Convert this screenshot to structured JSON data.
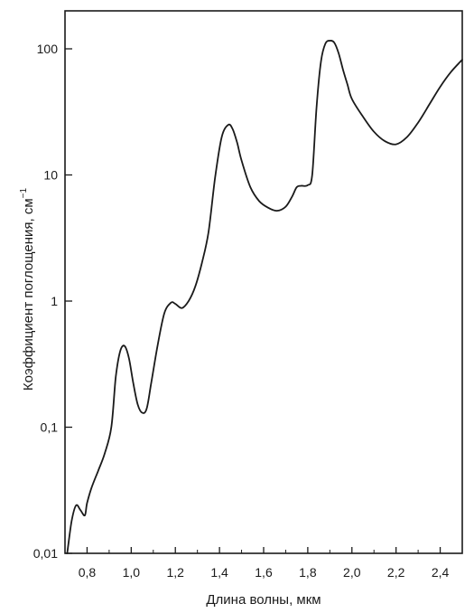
{
  "chart_data": {
    "type": "line",
    "title": "",
    "xlabel": "Длина волны, мкм",
    "ylabel": "Коэффициент поглощения, см",
    "ylabel_sup": "−1",
    "xscale": "linear",
    "yscale": "log",
    "xlim": [
      0.7,
      2.5
    ],
    "ylim": [
      0.01,
      200
    ],
    "grid": false,
    "legend": "none",
    "line_color": "#1a1a1a",
    "x_ticks": [
      {
        "value": 0.8,
        "label": "0,8"
      },
      {
        "value": 1.0,
        "label": "1,0"
      },
      {
        "value": 1.2,
        "label": "1,2"
      },
      {
        "value": 1.4,
        "label": "1,4"
      },
      {
        "value": 1.6,
        "label": "1,6"
      },
      {
        "value": 1.8,
        "label": "1,8"
      },
      {
        "value": 2.0,
        "label": "2,0"
      },
      {
        "value": 2.2,
        "label": "2,2"
      },
      {
        "value": 2.4,
        "label": "2,4"
      }
    ],
    "y_ticks": [
      {
        "value": 0.01,
        "label": "0,01"
      },
      {
        "value": 0.1,
        "label": "0,1"
      },
      {
        "value": 1,
        "label": "1"
      },
      {
        "value": 10,
        "label": "10"
      },
      {
        "value": 100,
        "label": "100"
      }
    ],
    "series": [
      {
        "x": [
          0.71,
          0.73,
          0.75,
          0.77,
          0.79,
          0.8,
          0.82,
          0.85,
          0.88,
          0.91,
          0.93,
          0.95,
          0.97,
          0.99,
          1.01,
          1.03,
          1.05,
          1.07,
          1.09,
          1.12,
          1.15,
          1.18,
          1.2,
          1.23,
          1.26,
          1.29,
          1.32,
          1.35,
          1.38,
          1.41,
          1.44,
          1.46,
          1.48,
          1.5,
          1.54,
          1.58,
          1.62,
          1.66,
          1.7,
          1.73,
          1.75,
          1.77,
          1.8,
          1.82,
          1.84,
          1.86,
          1.88,
          1.9,
          1.92,
          1.94,
          1.96,
          1.98,
          2.0,
          2.05,
          2.1,
          2.15,
          2.2,
          2.25,
          2.3,
          2.35,
          2.4,
          2.45,
          2.5
        ],
        "y": [
          0.01,
          0.018,
          0.024,
          0.022,
          0.02,
          0.025,
          0.033,
          0.045,
          0.062,
          0.1,
          0.25,
          0.4,
          0.44,
          0.35,
          0.22,
          0.15,
          0.13,
          0.14,
          0.22,
          0.45,
          0.8,
          0.97,
          0.95,
          0.88,
          1.0,
          1.3,
          2.0,
          3.5,
          9.5,
          20,
          25,
          23,
          18,
          13,
          8.0,
          6.2,
          5.5,
          5.2,
          5.6,
          6.8,
          8.0,
          8.2,
          8.3,
          10,
          35,
          80,
          110,
          116,
          112,
          92,
          68,
          52,
          40,
          29,
          22,
          18.5,
          17.5,
          20,
          26,
          36,
          50,
          66,
          82
        ]
      }
    ]
  }
}
